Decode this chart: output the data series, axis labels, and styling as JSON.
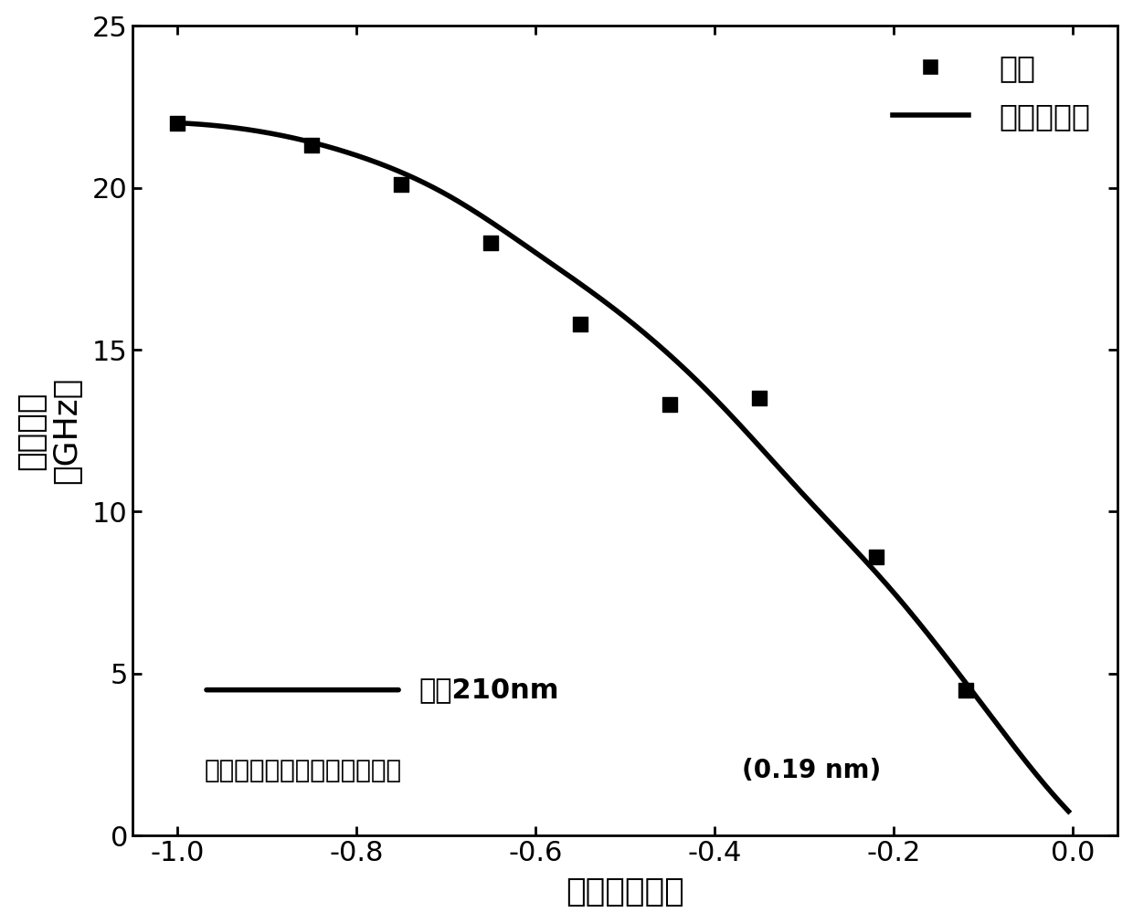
{
  "scatter_x": [
    -1.0,
    -0.85,
    -0.75,
    -0.65,
    -0.55,
    -0.45,
    -0.35,
    -0.22,
    -0.12
  ],
  "scatter_y": [
    22.0,
    21.3,
    20.1,
    18.3,
    15.8,
    13.3,
    13.5,
    8.6,
    4.5
  ],
  "curve_ref_x": [
    -1.0,
    -0.9,
    -0.8,
    -0.7,
    -0.6,
    -0.5,
    -0.4,
    -0.3,
    -0.2,
    -0.1,
    -0.05,
    -0.01
  ],
  "curve_ref_y": [
    22.0,
    21.7,
    21.0,
    19.8,
    18.0,
    16.0,
    13.5,
    10.5,
    7.5,
    4.0,
    2.2,
    0.9
  ],
  "xlim": [
    -1.05,
    0.05
  ],
  "ylim": [
    0,
    25
  ],
  "xticks": [
    -1.0,
    -0.8,
    -0.6,
    -0.4,
    -0.2,
    0.0
  ],
  "yticks": [
    0,
    5,
    10,
    15,
    20,
    25
  ],
  "xlabel": "本征源漏电压",
  "ylabel_top": "截止频率",
  "ylabel_bottom": "（GHz）",
  "legend_scatter": "实验",
  "legend_line": "数値解拟合",
  "annot1_text": "栏长210nm",
  "annot2_text": "石墨烯和金属接触的等效距离",
  "annot2_bold": "(0.19 nm)",
  "line_color": "#000000",
  "scatter_color": "#000000",
  "line_width": 4.0,
  "scatter_size": 130,
  "background_color": "#ffffff",
  "tick_fontsize": 22,
  "label_fontsize": 26,
  "legend_fontsize": 24,
  "annot_fontsize": 22
}
